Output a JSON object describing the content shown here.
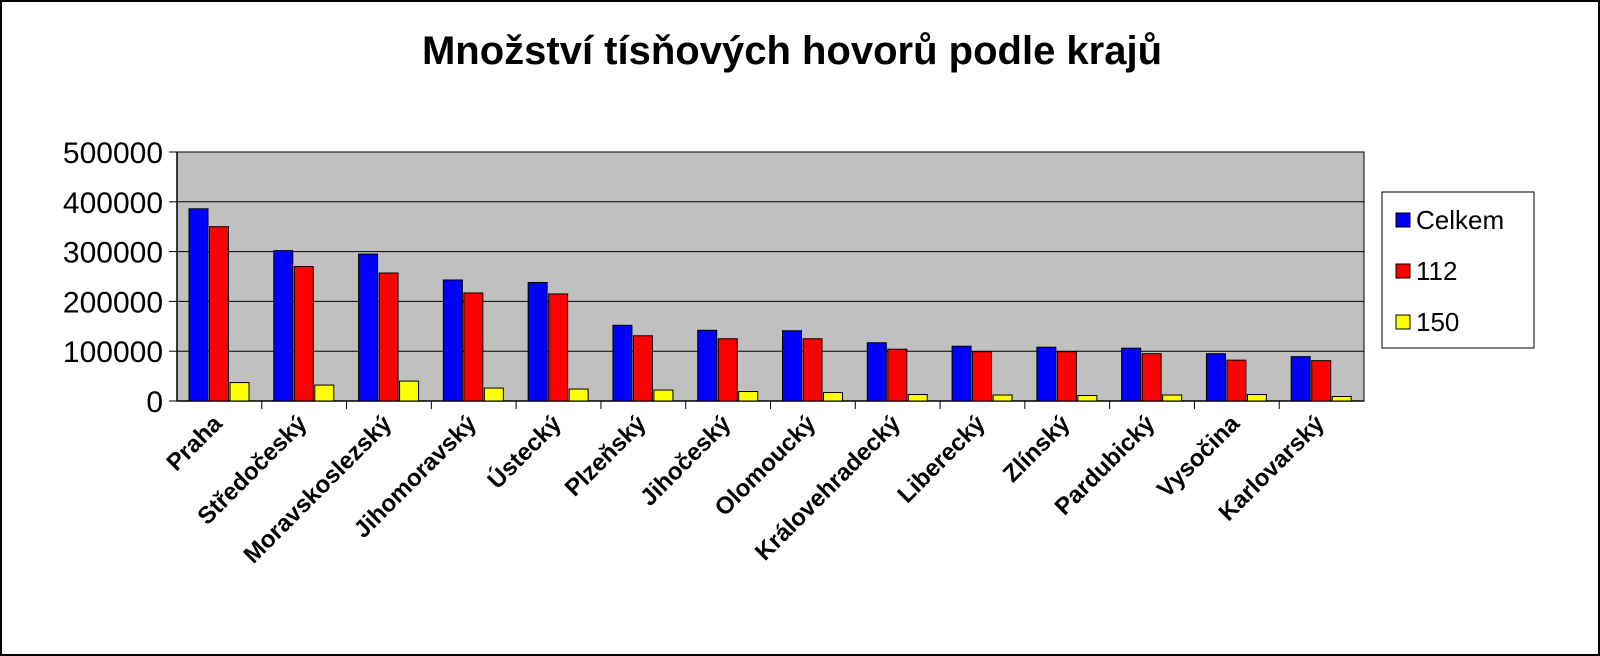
{
  "chart_data": {
    "type": "bar",
    "title": "Množství tísňových hovorů podle krajů",
    "xlabel": "",
    "ylabel": "",
    "ylim": [
      0,
      500000
    ],
    "yticks": [
      "0",
      "100000",
      "200000",
      "300000",
      "400000",
      "500000"
    ],
    "grid": true,
    "legend_position": "right",
    "categories": [
      "Praha",
      "Středočeský",
      "Moravskoslezský",
      "Jihomoravský",
      "Ústecký",
      "Plzeňský",
      "Jihočeský",
      "Olomoucký",
      "Královehradecký",
      "Liberecký",
      "Zlínský",
      "Pardubický",
      "Vysočina",
      "Karlovarský"
    ],
    "series": [
      {
        "name": "Celkem",
        "color": "#0000ff",
        "values": [
          386000,
          302000,
          295000,
          243000,
          238000,
          152000,
          142000,
          141000,
          117000,
          110000,
          108000,
          106000,
          95000,
          89000
        ]
      },
      {
        "name": "112",
        "color": "#ff0000",
        "values": [
          350000,
          270000,
          257000,
          217000,
          215000,
          131000,
          125000,
          125000,
          104000,
          99000,
          99000,
          95000,
          82000,
          81000
        ]
      },
      {
        "name": "150",
        "color": "#ffff00",
        "values": [
          37000,
          32000,
          40000,
          26000,
          24000,
          22000,
          19000,
          17000,
          13000,
          12000,
          11000,
          12000,
          13000,
          9000
        ]
      }
    ],
    "colors": {
      "plot_background": "#c0c0c0",
      "gridline": "#000000",
      "frame": "#000000"
    }
  }
}
